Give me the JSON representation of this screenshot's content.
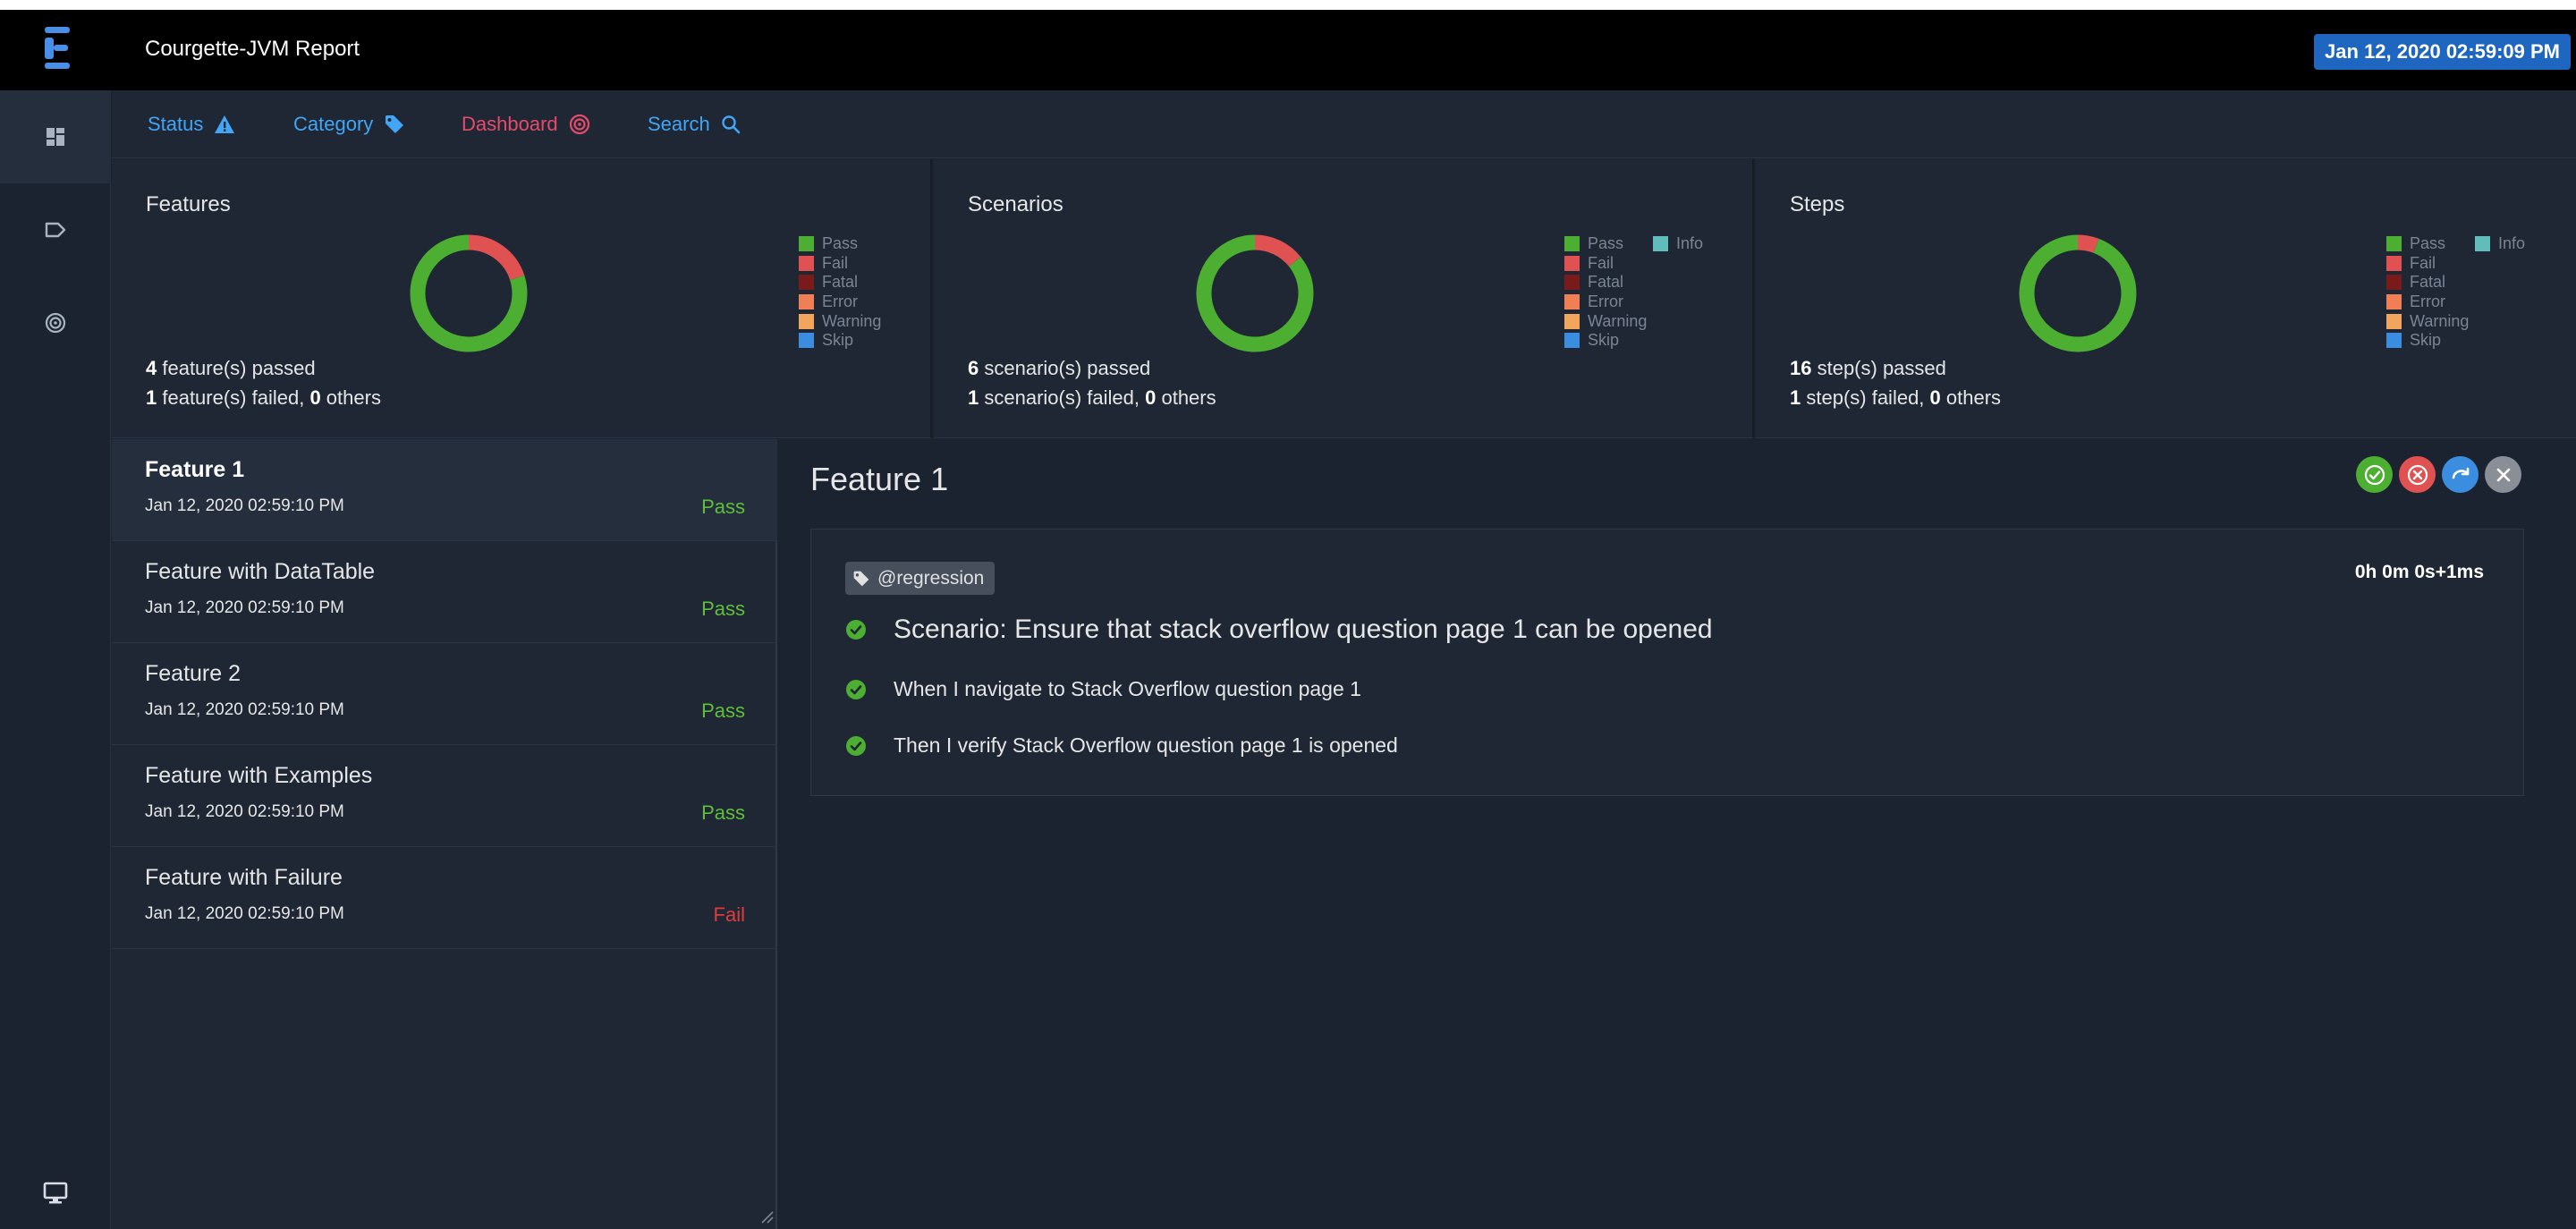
{
  "header": {
    "app_title": "Courgette-JVM Report",
    "date_badge": "Jan 12, 2020 02:59:09 PM"
  },
  "rail": {
    "items": [
      "dashboard-icon",
      "tag-icon",
      "target-icon"
    ],
    "bottom": "monitor-icon"
  },
  "nav": {
    "status": "Status",
    "category": "Category",
    "dashboard": "Dashboard",
    "search": "Search"
  },
  "legend_labels": {
    "pass": "Pass",
    "fail": "Fail",
    "fatal": "Fatal",
    "error": "Error",
    "warning": "Warning",
    "skip": "Skip",
    "info": "Info"
  },
  "colors": {
    "pass": "#4caf32",
    "fail": "#e05252",
    "fatal": "#7a1b1b",
    "error": "#f07f56",
    "warning": "#f2a55d",
    "skip": "#3b8de0",
    "info": "#61bcbc"
  },
  "summary": {
    "features": {
      "title": "Features",
      "passed_count": "4",
      "passed_text": " feature(s) passed",
      "failed_count": "1",
      "failed_text": " feature(s) failed, ",
      "others_count": "0",
      "others_text": " others",
      "chart": {
        "pass": 4,
        "fail": 1
      }
    },
    "scenarios": {
      "title": "Scenarios",
      "passed_count": "6",
      "passed_text": " scenario(s) passed",
      "failed_count": "1",
      "failed_text": " scenario(s) failed, ",
      "others_count": "0",
      "others_text": " others",
      "chart": {
        "pass": 6,
        "fail": 1
      }
    },
    "steps": {
      "title": "Steps",
      "passed_count": "16",
      "passed_text": " step(s) passed",
      "failed_count": "1",
      "failed_text": " step(s) failed, ",
      "others_count": "0",
      "others_text": " others",
      "chart": {
        "pass": 16,
        "fail": 1
      }
    }
  },
  "features": [
    {
      "name": "Feature 1",
      "time": "Jan 12, 2020 02:59:10 PM",
      "status": "Pass"
    },
    {
      "name": "Feature with DataTable",
      "time": "Jan 12, 2020 02:59:10 PM",
      "status": "Pass"
    },
    {
      "name": "Feature 2",
      "time": "Jan 12, 2020 02:59:10 PM",
      "status": "Pass"
    },
    {
      "name": "Feature with Examples",
      "time": "Jan 12, 2020 02:59:10 PM",
      "status": "Pass"
    },
    {
      "name": "Feature with Failure",
      "time": "Jan 12, 2020 02:59:10 PM",
      "status": "Fail"
    }
  ],
  "detail": {
    "title": "Feature 1",
    "tag": "@regression",
    "duration": "0h 0m 0s+1ms",
    "scenario": "Scenario: Ensure that stack overflow question page 1 can be opened",
    "steps": [
      "When I navigate to Stack Overflow question page 1",
      "Then I verify Stack Overflow question page 1 is opened"
    ],
    "action_buttons": [
      "check-icon",
      "close-circle-icon",
      "redo-icon",
      "close-icon"
    ]
  }
}
